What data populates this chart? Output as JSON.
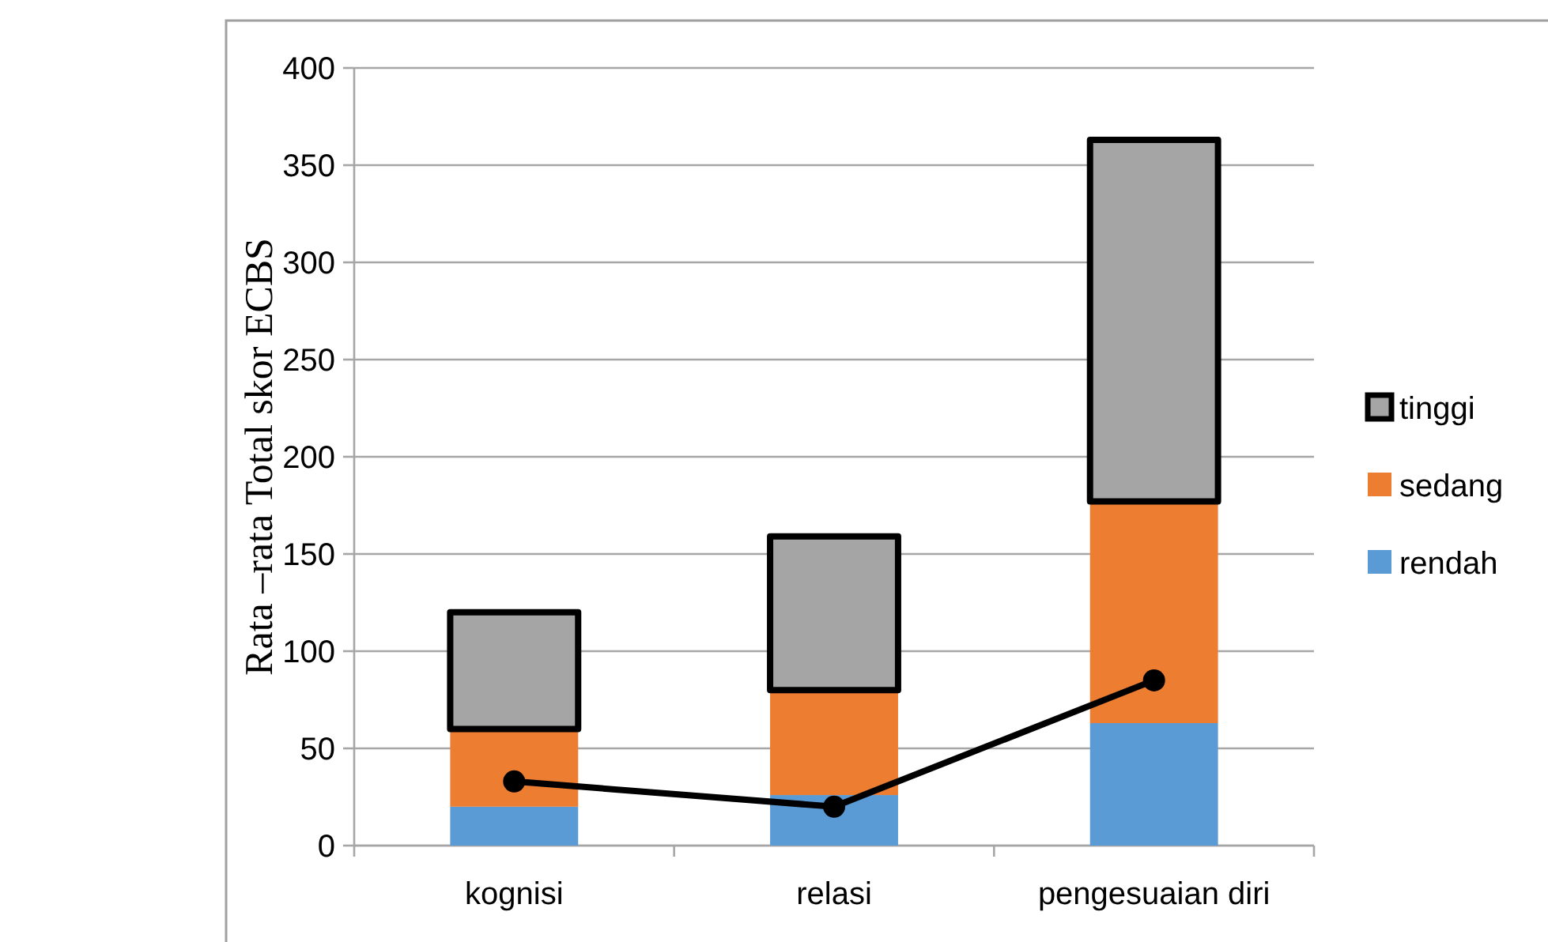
{
  "chart_data": {
    "type": "bar",
    "stacked": true,
    "ylabel": "Rata –rata Total skor ECBS",
    "categories": [
      "kognisi",
      "relasi",
      "pengesuaian diri"
    ],
    "series": [
      {
        "name": "rendah",
        "color": "#5b9bd5",
        "values": [
          20,
          26,
          63
        ]
      },
      {
        "name": "sedang",
        "color": "#ed7d31",
        "values": [
          40,
          54,
          114
        ]
      },
      {
        "name": "tinggi",
        "color": "#a5a5a5",
        "values": [
          60,
          79,
          186
        ]
      },
      {
        "type": "line",
        "color": "#000000",
        "values": [
          33,
          20,
          85
        ]
      }
    ],
    "ylim": [
      0,
      400
    ],
    "yticks": [
      0,
      50,
      100,
      150,
      200,
      250,
      300,
      350,
      400
    ],
    "grid": "y",
    "legend": "right",
    "marker": "circle"
  }
}
